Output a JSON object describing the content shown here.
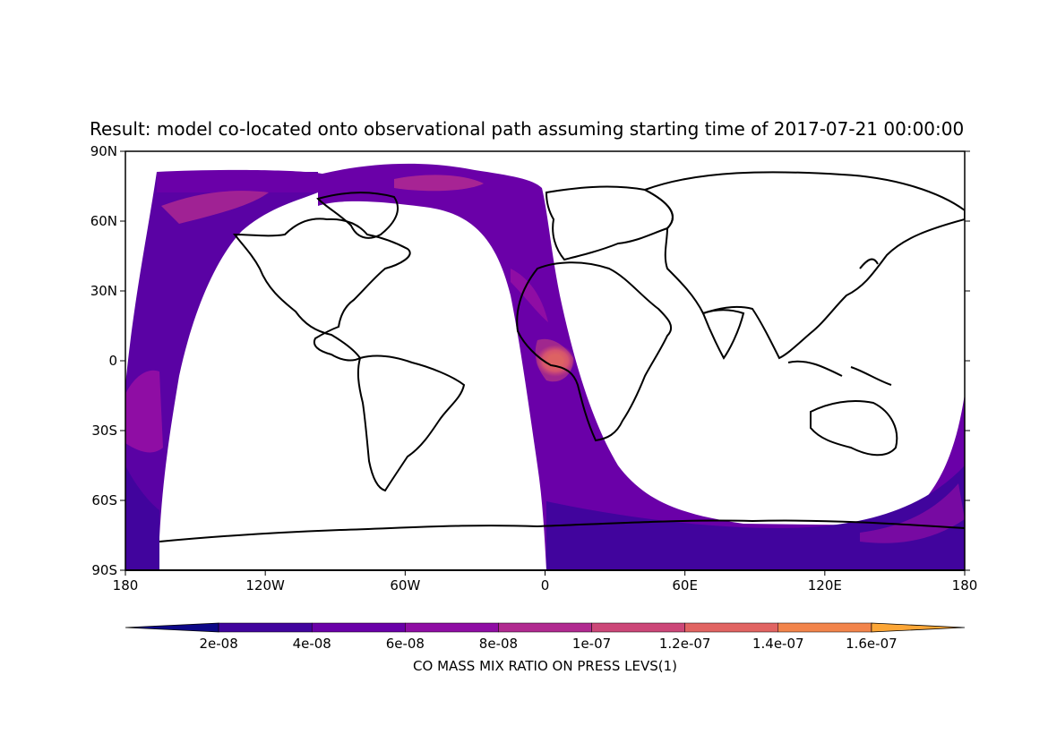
{
  "chart_data": {
    "type": "heatmap",
    "title": "Result: model co-located onto observational path assuming starting time of 2017-07-21 00:00:00",
    "projection": "plate-carree",
    "xlim": [
      -180,
      180
    ],
    "ylim": [
      -90,
      90
    ],
    "x_ticks": [
      {
        "value": -180,
        "label": "180"
      },
      {
        "value": -120,
        "label": "120W"
      },
      {
        "value": -60,
        "label": "60W"
      },
      {
        "value": 0,
        "label": "0"
      },
      {
        "value": 60,
        "label": "60E"
      },
      {
        "value": 120,
        "label": "120E"
      },
      {
        "value": 180,
        "label": "180"
      }
    ],
    "y_ticks": [
      {
        "value": 90,
        "label": "90N"
      },
      {
        "value": 60,
        "label": "60N"
      },
      {
        "value": 30,
        "label": "30N"
      },
      {
        "value": 0,
        "label": "0"
      },
      {
        "value": -30,
        "label": "30S"
      },
      {
        "value": -60,
        "label": "60S"
      },
      {
        "value": -90,
        "label": "90S"
      }
    ],
    "colorbar": {
      "label": "CO MASS MIX RATIO ON PRESS LEVS(1)",
      "levels": [
        1e-08,
        2e-08,
        3e-08,
        4e-08,
        5e-08,
        6e-08,
        7e-08,
        8e-08,
        9e-08,
        1e-07,
        1.1e-07,
        1.2e-07,
        1.3e-07,
        1.4e-07,
        1.5e-07,
        1.6e-07,
        1.7e-07
      ],
      "tick_values": [
        2e-08,
        4e-08,
        6e-08,
        8e-08,
        1e-07,
        1.2e-07,
        1.4e-07,
        1.6e-07
      ],
      "tick_labels": [
        "2e-08",
        "4e-08",
        "6e-08",
        "8e-08",
        "1e-07",
        "1.2e-07",
        "1.4e-07",
        "1.6e-07"
      ],
      "colors": [
        "#0d0887",
        "#41049d",
        "#6a00a8",
        "#8f0da4",
        "#b12a90",
        "#cc4778",
        "#e16462",
        "#f2844b",
        "#fca636"
      ],
      "extend": "both"
    },
    "swath": {
      "description_note": "observational path swath colored by model CO",
      "typical_value": 4.5e-08,
      "hotspot": {
        "lon": 5,
        "lat": 0,
        "value": 1.6e-07
      }
    }
  }
}
